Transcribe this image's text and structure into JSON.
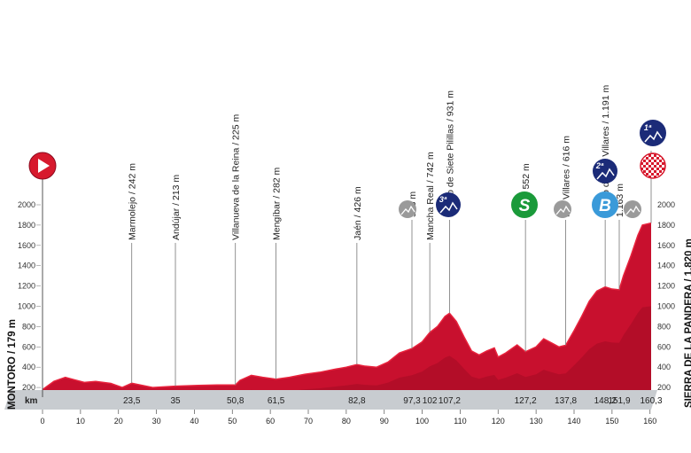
{
  "chart_data": {
    "type": "area",
    "xlabel": "km",
    "xlim": [
      0,
      160.3
    ],
    "ylim": [
      0,
      2000
    ],
    "y_ticks": [
      "200",
      "400",
      "600",
      "800",
      "1000",
      "1200",
      "1400",
      "1600",
      "1800",
      "2000"
    ],
    "x_ticks": [
      "0",
      "10",
      "20",
      "30",
      "40",
      "50",
      "60",
      "70",
      "80",
      "90",
      "100",
      "110",
      "120",
      "130",
      "140",
      "150",
      "160"
    ],
    "start_label": "MONTORO / 179 m",
    "finish_label": "SIERRA DE LA PANDERA / 1.820 m",
    "series": [
      {
        "x": [
          0,
          3,
          6,
          8,
          11,
          14,
          18,
          21,
          23.5,
          25,
          29,
          35,
          41,
          46,
          50.8,
          52,
          55,
          58,
          61.5,
          65,
          69,
          73,
          77,
          80,
          82.8,
          85,
          88,
          91,
          94,
          97.3,
          100,
          102,
          104,
          106,
          107.2,
          109,
          111,
          113,
          115,
          117,
          119,
          120,
          122,
          125,
          127.2,
          130,
          132,
          134,
          136,
          137.8,
          140,
          142,
          144,
          146,
          148.2,
          150,
          151.9,
          153,
          155,
          156.8,
          158,
          160.3
        ],
        "values": [
          179,
          260,
          300,
          280,
          250,
          260,
          240,
          200,
          242,
          230,
          200,
          213,
          220,
          225,
          225,
          270,
          320,
          300,
          282,
          300,
          330,
          350,
          380,
          400,
          426,
          410,
          400,
          450,
          540,
          583,
          650,
          742,
          800,
          900,
          931,
          850,
          700,
          560,
          520,
          560,
          590,
          500,
          540,
          620,
          552,
          600,
          680,
          640,
          600,
          616,
          760,
          900,
          1050,
          1150,
          1191,
          1170,
          1163,
          1300,
          1500,
          1700,
          1800,
          1820
        ]
      }
    ]
  },
  "waypoints": [
    {
      "label": "Marmolejo / 242 m",
      "km": "23,5"
    },
    {
      "label": "Andújar / 213 m",
      "km": "35"
    },
    {
      "label": "Villanueva de la Reina / 225 m",
      "km": "50,8"
    },
    {
      "label": "Mengíbar / 282 m",
      "km": "61,5"
    },
    {
      "label": "Jaén / 426 m",
      "km": "82,8"
    },
    {
      "label": "583 m",
      "km": "97,3"
    },
    {
      "label": "Mancha Real / 742 m",
      "km": "102"
    },
    {
      "label": "Puerto de Siete Pilillas / 931 m",
      "km": "107,2"
    },
    {
      "label": "Jaén / 552 m",
      "km": "127,2"
    },
    {
      "label": "Los Villares / 616 m",
      "km": "137,8"
    },
    {
      "label": "Puerto de Los Villares / 1.191 m",
      "km": "148,2"
    },
    {
      "label": "1.163 m",
      "km": "151,9"
    },
    {
      "label": "",
      "km": "160,3"
    }
  ],
  "icons": {
    "start": "start-play-icon",
    "sprint_label": "S",
    "bonus_label": "B",
    "cat1_label": "1ª",
    "cat2_label": "2ª",
    "cat3_label": "3ª",
    "finish": "checkered-flag-icon",
    "colors": {
      "profile": "#c8102e",
      "profile_dark": "#8c0a1e",
      "start": "#d7192d",
      "sprint": "#1a9a3a",
      "bonus": "#3a9ad9",
      "climb": "#1b2b78",
      "uncat": "#9a9a9a",
      "kmbar": "#c8ccd0"
    }
  }
}
